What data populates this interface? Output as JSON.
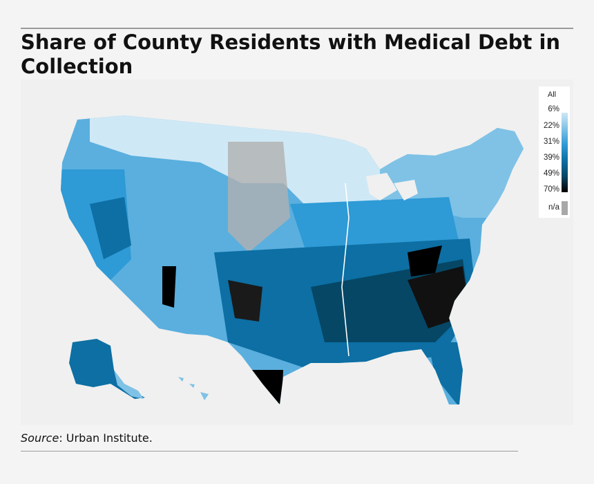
{
  "title": "Share of County Residents with Medical Debt in Collection",
  "source_label": "Source",
  "source_text": ": Urban Institute.",
  "legend": {
    "title": "All",
    "ticks": [
      "6%",
      "22%",
      "31%",
      "39%",
      "49%",
      "70%"
    ],
    "na_label": "n/a",
    "colors": [
      "#cfe8f6",
      "#7fc2e6",
      "#2e9ad6",
      "#0d6fa3",
      "#064766",
      "#000000"
    ],
    "na_color": "#a8a8a8"
  },
  "map": {
    "land_colors": {
      "north": "#cfe8f6",
      "west": "#5aafde",
      "plains": "#b0b0b0",
      "midwest": "#2e9ad6",
      "south": "#0d6fa3",
      "deep_south": "#064766",
      "hot": "#000000"
    }
  }
}
